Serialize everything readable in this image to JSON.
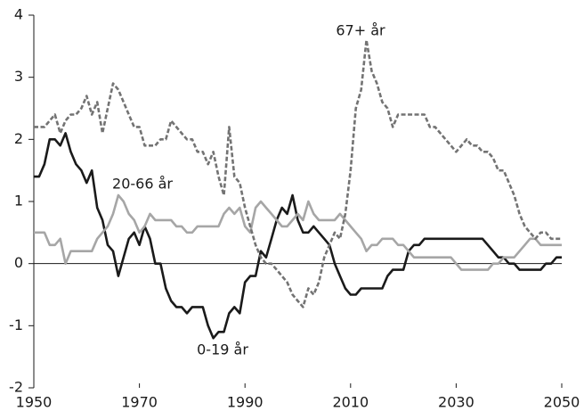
{
  "chart_data": {
    "type": "line",
    "x": [
      1950,
      1951,
      1952,
      1953,
      1954,
      1955,
      1956,
      1957,
      1958,
      1959,
      1960,
      1961,
      1962,
      1963,
      1964,
      1965,
      1966,
      1967,
      1968,
      1969,
      1970,
      1971,
      1972,
      1973,
      1974,
      1975,
      1976,
      1977,
      1978,
      1979,
      1980,
      1981,
      1982,
      1983,
      1984,
      1985,
      1986,
      1987,
      1988,
      1989,
      1990,
      1991,
      1992,
      1993,
      1994,
      1995,
      1996,
      1997,
      1998,
      1999,
      2000,
      2001,
      2002,
      2003,
      2004,
      2005,
      2006,
      2007,
      2008,
      2009,
      2010,
      2011,
      2012,
      2013,
      2014,
      2015,
      2016,
      2017,
      2018,
      2019,
      2020,
      2021,
      2022,
      2023,
      2024,
      2025,
      2026,
      2027,
      2028,
      2029,
      2030,
      2031,
      2032,
      2033,
      2034,
      2035,
      2036,
      2037,
      2038,
      2039,
      2040,
      2041,
      2042,
      2043,
      2044,
      2045,
      2046,
      2047,
      2048,
      2049,
      2050
    ],
    "series": [
      {
        "name": "0-19 år",
        "color": "#1a1a1a",
        "dashed": false,
        "values": [
          1.4,
          1.4,
          1.6,
          2.0,
          2.0,
          1.9,
          2.1,
          1.8,
          1.6,
          1.5,
          1.3,
          1.5,
          0.9,
          0.7,
          0.3,
          0.2,
          -0.2,
          0.1,
          0.4,
          0.5,
          0.3,
          0.6,
          0.4,
          0.0,
          0.0,
          -0.4,
          -0.6,
          -0.7,
          -0.7,
          -0.8,
          -0.7,
          -0.7,
          -0.7,
          -1.0,
          -1.2,
          -1.1,
          -1.1,
          -0.8,
          -0.7,
          -0.8,
          -0.3,
          -0.2,
          -0.2,
          0.2,
          0.1,
          0.4,
          0.7,
          0.9,
          0.8,
          1.1,
          0.7,
          0.5,
          0.5,
          0.6,
          0.5,
          0.4,
          0.3,
          0.0,
          -0.2,
          -0.4,
          -0.5,
          -0.5,
          -0.4,
          -0.4,
          -0.4,
          -0.4,
          -0.4,
          -0.2,
          -0.1,
          -0.1,
          -0.1,
          0.2,
          0.3,
          0.3,
          0.4,
          0.4,
          0.4,
          0.4,
          0.4,
          0.4,
          0.4,
          0.4,
          0.4,
          0.4,
          0.4,
          0.4,
          0.3,
          0.2,
          0.1,
          0.1,
          0.0,
          0.0,
          -0.1,
          -0.1,
          -0.1,
          -0.1,
          -0.1,
          0.0,
          0.0,
          0.1,
          0.1
        ]
      },
      {
        "name": "20-66 år",
        "color": "#a6a6a6",
        "dashed": false,
        "values": [
          0.5,
          0.5,
          0.5,
          0.3,
          0.3,
          0.4,
          0.0,
          0.2,
          0.2,
          0.2,
          0.2,
          0.2,
          0.4,
          0.5,
          0.6,
          0.8,
          1.1,
          1.0,
          0.8,
          0.7,
          0.5,
          0.6,
          0.8,
          0.7,
          0.7,
          0.7,
          0.7,
          0.6,
          0.6,
          0.5,
          0.5,
          0.6,
          0.6,
          0.6,
          0.6,
          0.6,
          0.8,
          0.9,
          0.8,
          0.9,
          0.6,
          0.5,
          0.9,
          1.0,
          0.9,
          0.8,
          0.7,
          0.6,
          0.6,
          0.7,
          0.8,
          0.7,
          1.0,
          0.8,
          0.7,
          0.7,
          0.7,
          0.7,
          0.8,
          0.7,
          0.6,
          0.5,
          0.4,
          0.2,
          0.3,
          0.3,
          0.4,
          0.4,
          0.4,
          0.3,
          0.3,
          0.2,
          0.1,
          0.1,
          0.1,
          0.1,
          0.1,
          0.1,
          0.1,
          0.1,
          0.0,
          -0.1,
          -0.1,
          -0.1,
          -0.1,
          -0.1,
          -0.1,
          0.0,
          0.0,
          0.1,
          0.1,
          0.1,
          0.2,
          0.3,
          0.4,
          0.4,
          0.3,
          0.3,
          0.3,
          0.3,
          0.3
        ]
      },
      {
        "name": "67+ år",
        "color": "#737373",
        "dashed": true,
        "values": [
          2.2,
          2.2,
          2.2,
          2.3,
          2.4,
          2.1,
          2.3,
          2.4,
          2.4,
          2.5,
          2.7,
          2.4,
          2.6,
          2.1,
          2.5,
          2.9,
          2.8,
          2.6,
          2.4,
          2.2,
          2.2,
          1.9,
          1.9,
          1.9,
          2.0,
          2.0,
          2.3,
          2.2,
          2.1,
          2.0,
          2.0,
          1.8,
          1.8,
          1.6,
          1.8,
          1.4,
          1.1,
          2.2,
          1.4,
          1.3,
          0.9,
          0.6,
          0.3,
          0.1,
          0.0,
          0.0,
          -0.1,
          -0.2,
          -0.3,
          -0.5,
          -0.6,
          -0.7,
          -0.4,
          -0.5,
          -0.3,
          0.1,
          0.3,
          0.5,
          0.4,
          0.8,
          1.5,
          2.5,
          2.8,
          3.6,
          3.1,
          2.9,
          2.6,
          2.5,
          2.2,
          2.4,
          2.4,
          2.4,
          2.4,
          2.4,
          2.4,
          2.2,
          2.2,
          2.1,
          2.0,
          1.9,
          1.8,
          1.9,
          2.0,
          1.9,
          1.9,
          1.8,
          1.8,
          1.7,
          1.5,
          1.5,
          1.3,
          1.1,
          0.8,
          0.6,
          0.5,
          0.4,
          0.5,
          0.5,
          0.4,
          0.4,
          0.4
        ]
      }
    ],
    "xlim": [
      1950,
      2050
    ],
    "xticks": [
      1950,
      1970,
      1990,
      2010,
      2030,
      2050
    ],
    "ylim": [
      -2,
      4
    ],
    "yticks": [
      -2,
      -1,
      0,
      1,
      2,
      3,
      4
    ],
    "zero_line": true
  }
}
